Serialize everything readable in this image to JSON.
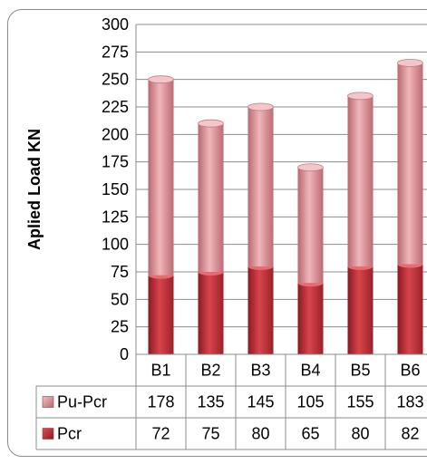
{
  "chart_data": {
    "type": "bar",
    "stacked": true,
    "categories": [
      "B1",
      "B2",
      "B3",
      "B4",
      "B5",
      "B6"
    ],
    "series": [
      {
        "name": "Pcr",
        "values": [
          72,
          75,
          80,
          65,
          80,
          82
        ],
        "color": "#c0303a"
      },
      {
        "name": "Pu-Pcr",
        "values": [
          178,
          135,
          145,
          105,
          155,
          183
        ],
        "color": "#d98c92"
      }
    ],
    "ylabel": "Aplied Load KN",
    "ylim": [
      0,
      300
    ],
    "yticks": [
      0,
      25,
      50,
      75,
      100,
      125,
      150,
      175,
      200,
      225,
      250,
      275,
      300
    ],
    "table_display_values": {
      "Pu-Pcr": [
        "178",
        "135",
        "145",
        "105",
        "155",
        "183"
      ],
      "Pcr": [
        "72",
        "75",
        "80",
        "65",
        "80",
        "82"
      ]
    },
    "table_row_order": [
      "Pu-Pcr",
      "Pcr"
    ],
    "grid": true,
    "legend": "data-table"
  }
}
